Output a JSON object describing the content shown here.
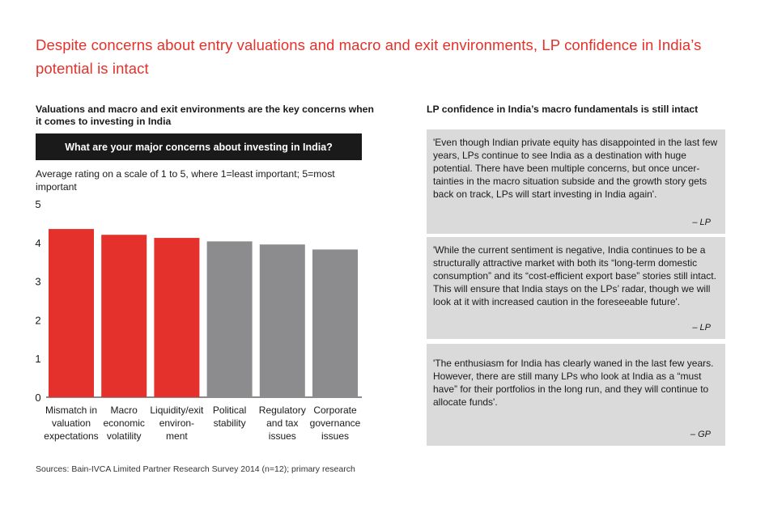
{
  "title": "Despite concerns about entry valuations and macro and exit environments, LP confidence in India’s potential is intact",
  "left_panel": {
    "subtitle": "Valuations and macro and exit environments are the key concerns when it comes to investing in India",
    "question": "What are your major concerns about investing in India?",
    "rating_note": "Average rating on a scale of 1 to 5, where 1=least important; 5=most important"
  },
  "right_panel": {
    "subtitle": "LP confidence in India’s macro fundamentals is still intact",
    "quotes": [
      {
        "text": "'Even though Indian private equity has disappointed in the last few years, LPs continue to see India as a destination with huge potential. There have been multiple concerns, but once uncer- tainties in the macro situation subside and the growth story gets back on track, LPs will start investing in India again'.",
        "attribution": "– LP"
      },
      {
        "text": "'While the current sentiment is negative, India continues to be a structurally attractive market with both its “long-term domestic consumption” and its “cost-efficient export base” stories still intact. This will ensure that India stays on the LPs’ radar, though we will look at it with increased caution in the foreseeable future'.",
        "attribution": "– LP"
      },
      {
        "text": "'The enthusiasm for India has clearly waned in the last few years. However, there are still many LPs who look at India as a “must have” for their portfolios in the long run, and they will continue to allocate funds'.",
        "attribution": "– GP"
      }
    ]
  },
  "source": "Sources: Bain-IVCA Limited Partner Research Survey 2014 (n=12); primary research",
  "colors": {
    "accent": "#e4312b",
    "bar_highlight": "#e4312b",
    "bar_other": "#8c8c8e",
    "quote_bg": "#dadada"
  },
  "chart_data": {
    "type": "bar",
    "categories": [
      "Mismatch in valuation expectations",
      "Macro economic volatility",
      "Liquidity/exit environ- ment",
      "Political stability",
      "Regulatory and tax issues",
      "Corporate governance issues"
    ],
    "values": [
      4.35,
      4.2,
      4.12,
      4.03,
      3.95,
      3.82
    ],
    "highlight": [
      true,
      true,
      true,
      false,
      false,
      false
    ],
    "ylim": [
      0,
      5
    ],
    "yticks": [
      "0",
      "1",
      "2",
      "3",
      "4",
      "5"
    ],
    "grid": false
  }
}
